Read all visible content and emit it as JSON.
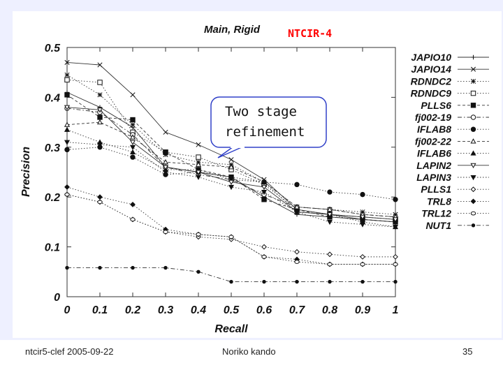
{
  "slide": {
    "footer_left": "ntcir5-clef  2005-09-22",
    "footer_center": "Noriko kando",
    "page_number": "35",
    "tag": "NTCIR-4",
    "callout": [
      "Two stage",
      "refinement"
    ],
    "colors": {
      "tag": "#ff0000",
      "callout_border": "#3040c8",
      "band": "#eef0ff"
    }
  },
  "chart_data": {
    "type": "line",
    "title": "Main, Rigid",
    "xlabel": "Recall",
    "ylabel": "Precision",
    "x": [
      0,
      0.1,
      0.2,
      0.3,
      0.4,
      0.5,
      0.6,
      0.7,
      0.8,
      0.9,
      1
    ],
    "xtick_labels": [
      "0",
      "0.1",
      "0.2",
      "0.3",
      "0.4",
      "0.5",
      "0.6",
      "0.7",
      "0.8",
      "0.9",
      "1"
    ],
    "yticks": [
      0,
      0.1,
      0.2,
      0.3,
      0.4,
      0.5
    ],
    "ytick_labels": [
      "0",
      "0.1",
      "0.2",
      "0.3",
      "0.4",
      "0.5"
    ],
    "xlim": [
      0,
      1
    ],
    "ylim": [
      0,
      0.5
    ],
    "legend_position": "right",
    "series": [
      {
        "name": "JAPIO10",
        "marker": "+",
        "dash": "solid",
        "values": [
          0.41,
          0.38,
          0.34,
          0.26,
          0.25,
          0.24,
          0.2,
          0.165,
          0.16,
          0.155,
          0.15
        ]
      },
      {
        "name": "JAPIO14",
        "marker": "x",
        "dash": "solid",
        "values": [
          0.47,
          0.465,
          0.405,
          0.33,
          0.305,
          0.275,
          0.235,
          0.175,
          0.165,
          0.155,
          0.15
        ]
      },
      {
        "name": "RDNDC2",
        "marker": "*",
        "dash": "dotted",
        "values": [
          0.445,
          0.405,
          0.345,
          0.285,
          0.27,
          0.265,
          0.23,
          0.18,
          0.175,
          0.17,
          0.165
        ]
      },
      {
        "name": "RDNDC9",
        "marker": "square-open",
        "dash": "dotted",
        "values": [
          0.435,
          0.43,
          0.33,
          0.29,
          0.28,
          0.255,
          0.225,
          0.175,
          0.165,
          0.16,
          0.155
        ]
      },
      {
        "name": "PLLS6",
        "marker": "square-filled",
        "dash": "dashed",
        "values": [
          0.405,
          0.36,
          0.355,
          0.29,
          0.255,
          0.24,
          0.195,
          0.175,
          0.16,
          0.155,
          0.15
        ]
      },
      {
        "name": "fj002-19",
        "marker": "circle-open",
        "dash": "dash-dot",
        "values": [
          0.378,
          0.37,
          0.325,
          0.26,
          0.245,
          0.235,
          0.205,
          0.18,
          0.175,
          0.165,
          0.16
        ]
      },
      {
        "name": "IFLAB8",
        "marker": "circle-filled",
        "dash": "dotted",
        "values": [
          0.295,
          0.3,
          0.28,
          0.245,
          0.25,
          0.24,
          0.23,
          0.225,
          0.21,
          0.205,
          0.195
        ]
      },
      {
        "name": "fj002-22",
        "marker": "triangle-open",
        "dash": "dashed",
        "values": [
          0.345,
          0.35,
          0.32,
          0.27,
          0.265,
          0.26,
          0.23,
          0.18,
          0.175,
          0.165,
          0.16
        ]
      },
      {
        "name": "IFLAB6",
        "marker": "triangle-filled",
        "dash": "dotted",
        "values": [
          0.335,
          0.31,
          0.29,
          0.255,
          0.255,
          0.235,
          0.23,
          0.17,
          0.165,
          0.15,
          0.14
        ]
      },
      {
        "name": "LAPIN2",
        "marker": "triangle-down-open",
        "dash": "solid",
        "values": [
          0.38,
          0.375,
          0.31,
          0.26,
          0.25,
          0.23,
          0.22,
          0.17,
          0.165,
          0.16,
          0.155
        ]
      },
      {
        "name": "LAPIN3",
        "marker": "triangle-down-filled",
        "dash": "dotted",
        "values": [
          0.31,
          0.305,
          0.3,
          0.25,
          0.24,
          0.22,
          0.21,
          0.17,
          0.15,
          0.145,
          0.14
        ]
      },
      {
        "name": "PLLS1",
        "marker": "diamond-open",
        "dash": "dotted",
        "values": [
          0.205,
          0.19,
          0.155,
          0.13,
          0.12,
          0.115,
          0.1,
          0.09,
          0.085,
          0.08,
          0.08
        ]
      },
      {
        "name": "TRL8",
        "marker": "diamond-filled",
        "dash": "dotted",
        "values": [
          0.22,
          0.2,
          0.185,
          0.135,
          0.125,
          0.12,
          0.08,
          0.075,
          0.065,
          0.065,
          0.065
        ]
      },
      {
        "name": "TRL12",
        "marker": "hexagon-open",
        "dash": "dotted",
        "values": [
          0.205,
          0.19,
          0.155,
          0.13,
          0.125,
          0.12,
          0.08,
          0.07,
          0.065,
          0.065,
          0.065
        ]
      },
      {
        "name": "NUT1",
        "marker": "dot",
        "dash": "dash-dot",
        "values": [
          0.058,
          0.058,
          0.058,
          0.058,
          0.05,
          0.03,
          0.03,
          0.03,
          0.03,
          0.03,
          0.03
        ]
      }
    ]
  }
}
